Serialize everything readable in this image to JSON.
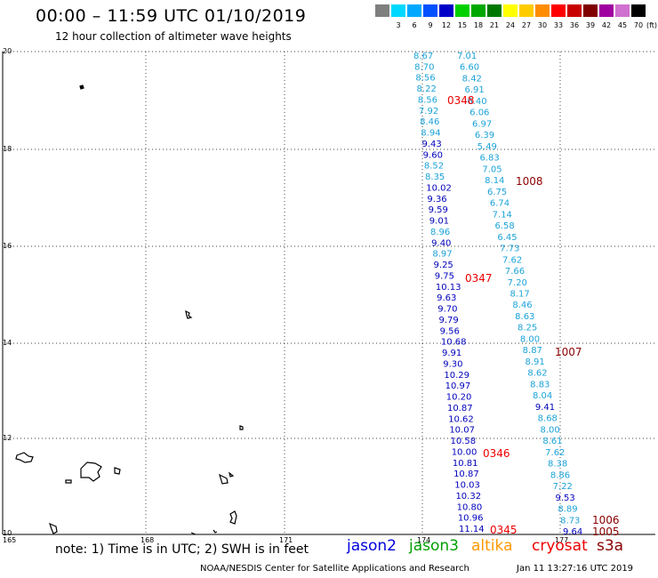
{
  "title": "00:00 – 11:59 UTC 01/10/2019",
  "subtitle": "12 hour collection of altimeter wave heights",
  "color_scale": {
    "unit": "(ft)",
    "bins": [
      {
        "label": "",
        "color": "#7f7f7f"
      },
      {
        "label": "3",
        "color": "#00d8ff"
      },
      {
        "label": "6",
        "color": "#00a8ff"
      },
      {
        "label": "9",
        "color": "#0050ff"
      },
      {
        "label": "12",
        "color": "#0000c8"
      },
      {
        "label": "15",
        "color": "#00d000"
      },
      {
        "label": "18",
        "color": "#00a800"
      },
      {
        "label": "21",
        "color": "#007800"
      },
      {
        "label": "24",
        "color": "#ffff00"
      },
      {
        "label": "27",
        "color": "#ffcc00"
      },
      {
        "label": "30",
        "color": "#ff8c00"
      },
      {
        "label": "33",
        "color": "#ff0000"
      },
      {
        "label": "36",
        "color": "#c80000"
      },
      {
        "label": "39",
        "color": "#800000"
      },
      {
        "label": "42",
        "color": "#a000a0"
      },
      {
        "label": "45",
        "color": "#d070d0"
      },
      {
        "label": "70",
        "color": "#000000"
      }
    ]
  },
  "axes": {
    "lat_labels": [
      "20",
      "18",
      "16",
      "14",
      "12",
      "10"
    ],
    "lon_labels": [
      "165",
      "168",
      "171",
      "174",
      "177"
    ]
  },
  "colors": {
    "light": "#1ca3d8",
    "dark": "#0000bb",
    "time_red": "#ee0000",
    "time_maroon": "#8b0000"
  },
  "tracks": {
    "left": [
      {
        "v": "8.67",
        "c": "light"
      },
      {
        "v": "8.70",
        "c": "light"
      },
      {
        "v": "8.56",
        "c": "light"
      },
      {
        "v": "8.22",
        "c": "light"
      },
      {
        "v": "8.56",
        "c": "light"
      },
      {
        "v": "7.92",
        "c": "light"
      },
      {
        "v": "8.46",
        "c": "light"
      },
      {
        "v": "8.94",
        "c": "light"
      },
      {
        "v": "9.43",
        "c": "dark"
      },
      {
        "v": "9.60",
        "c": "dark"
      },
      {
        "v": "8.52",
        "c": "light"
      },
      {
        "v": "8.35",
        "c": "light"
      },
      {
        "v": "10.02",
        "c": "dark"
      },
      {
        "v": "9.36",
        "c": "dark"
      },
      {
        "v": "9.59",
        "c": "dark"
      },
      {
        "v": "9.01",
        "c": "dark"
      },
      {
        "v": "8.96",
        "c": "light"
      },
      {
        "v": "9.40",
        "c": "dark"
      },
      {
        "v": "8.97",
        "c": "light"
      },
      {
        "v": "9.25",
        "c": "dark"
      },
      {
        "v": "9.75",
        "c": "dark"
      },
      {
        "v": "10.13",
        "c": "dark"
      },
      {
        "v": "9.63",
        "c": "dark"
      },
      {
        "v": "9.70",
        "c": "dark"
      },
      {
        "v": "9.79",
        "c": "dark"
      },
      {
        "v": "9.56",
        "c": "dark"
      },
      {
        "v": "10.68",
        "c": "dark"
      },
      {
        "v": "9.91",
        "c": "dark"
      },
      {
        "v": "9.30",
        "c": "dark"
      },
      {
        "v": "10.29",
        "c": "dark"
      },
      {
        "v": "10.97",
        "c": "dark"
      },
      {
        "v": "10.20",
        "c": "dark"
      },
      {
        "v": "10.87",
        "c": "dark"
      },
      {
        "v": "10.62",
        "c": "dark"
      },
      {
        "v": "10.07",
        "c": "dark"
      },
      {
        "v": "10.58",
        "c": "dark"
      },
      {
        "v": "10.00",
        "c": "dark"
      },
      {
        "v": "10.81",
        "c": "dark"
      },
      {
        "v": "10.87",
        "c": "dark"
      },
      {
        "v": "10.03",
        "c": "dark"
      },
      {
        "v": "10.32",
        "c": "dark"
      },
      {
        "v": "10.80",
        "c": "dark"
      },
      {
        "v": "10.96",
        "c": "dark"
      },
      {
        "v": "11.14",
        "c": "dark"
      }
    ],
    "right": [
      {
        "v": "7.01",
        "c": "light"
      },
      {
        "v": "6.60",
        "c": "light"
      },
      {
        "v": "8.42",
        "c": "light"
      },
      {
        "v": "6.91",
        "c": "light"
      },
      {
        "v": "6.40",
        "c": "light"
      },
      {
        "v": "6.06",
        "c": "light"
      },
      {
        "v": "6.97",
        "c": "light"
      },
      {
        "v": "6.39",
        "c": "light"
      },
      {
        "v": "5.49",
        "c": "light"
      },
      {
        "v": "6.83",
        "c": "light"
      },
      {
        "v": "7.05",
        "c": "light"
      },
      {
        "v": "8.14",
        "c": "light"
      },
      {
        "v": "6.75",
        "c": "light"
      },
      {
        "v": "6.74",
        "c": "light"
      },
      {
        "v": "7.14",
        "c": "light"
      },
      {
        "v": "6.58",
        "c": "light"
      },
      {
        "v": "6.45",
        "c": "light"
      },
      {
        "v": "7.73",
        "c": "light"
      },
      {
        "v": "7.62",
        "c": "light"
      },
      {
        "v": "7.66",
        "c": "light"
      },
      {
        "v": "7.20",
        "c": "light"
      },
      {
        "v": "8.17",
        "c": "light"
      },
      {
        "v": "8.46",
        "c": "light"
      },
      {
        "v": "8.63",
        "c": "light"
      },
      {
        "v": "8.25",
        "c": "light"
      },
      {
        "v": "8.00",
        "c": "light"
      },
      {
        "v": "8.87",
        "c": "light"
      },
      {
        "v": "8.91",
        "c": "light"
      },
      {
        "v": "8.62",
        "c": "light"
      },
      {
        "v": "8.83",
        "c": "light"
      },
      {
        "v": "8.04",
        "c": "light"
      },
      {
        "v": "9.41",
        "c": "dark"
      },
      {
        "v": "8.68",
        "c": "light"
      },
      {
        "v": "8.00",
        "c": "light"
      },
      {
        "v": "8.61",
        "c": "light"
      },
      {
        "v": "7.62",
        "c": "light"
      },
      {
        "v": "8.38",
        "c": "light"
      },
      {
        "v": "8.86",
        "c": "light"
      },
      {
        "v": "7.22",
        "c": "light"
      },
      {
        "v": "9.53",
        "c": "dark"
      },
      {
        "v": "8.89",
        "c": "light"
      },
      {
        "v": "8.73",
        "c": "light"
      },
      {
        "v": "9.64",
        "c": "dark"
      }
    ]
  },
  "time_labels": [
    {
      "text": "0348",
      "c": "time_red"
    },
    {
      "text": "0347",
      "c": "time_red"
    },
    {
      "text": "0346",
      "c": "time_red"
    },
    {
      "text": "0345",
      "c": "time_red"
    },
    {
      "text": "1008",
      "c": "time_maroon"
    },
    {
      "text": "1007",
      "c": "time_maroon"
    },
    {
      "text": "1006",
      "c": "time_maroon"
    },
    {
      "text": "1005",
      "c": "time_maroon"
    }
  ],
  "footer": {
    "note": "note: 1) Time is in UTC; 2) SWH is in feet",
    "satellites": [
      {
        "name": "jason2",
        "color": "#0000dd"
      },
      {
        "name": "jason3",
        "color": "#00a000"
      },
      {
        "name": "altika",
        "color": "#ff9900"
      },
      {
        "name": "cryosat",
        "color": "#ee0000"
      },
      {
        "name": "s3a",
        "color": "#8b0000"
      }
    ],
    "credit": "NOAA/NESDIS Center for Satellite Applications and Research",
    "timestamp": "Jan 11 13:27:16 UTC 2019"
  }
}
